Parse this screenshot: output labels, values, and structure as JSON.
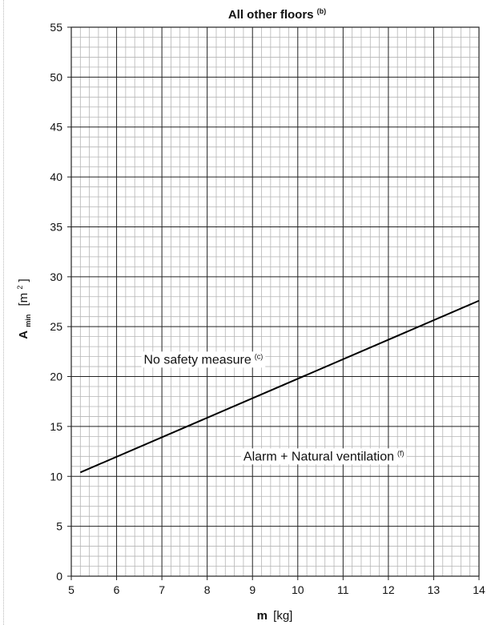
{
  "chart_data": {
    "type": "line",
    "title": "All other floors",
    "title_superscript": "(b)",
    "xlabel": "m",
    "xlabel_unit": "[kg]",
    "ylabel": "A",
    "ylabel_subscript": "min",
    "ylabel_unit": "[m",
    "ylabel_unit_superscript": "2",
    "ylabel_unit_close": "]",
    "xlim": [
      5,
      14
    ],
    "ylim": [
      0,
      55
    ],
    "x_ticks": [
      "5",
      "6",
      "7",
      "8",
      "9",
      "10",
      "11",
      "12",
      "13",
      "14"
    ],
    "y_ticks": [
      "0",
      "5",
      "10",
      "15",
      "20",
      "25",
      "30",
      "35",
      "40",
      "45",
      "50",
      "55"
    ],
    "grid": true,
    "series": [
      {
        "x": [
          5.2,
          14.0
        ],
        "y": [
          10.4,
          27.6
        ],
        "color": "#000000"
      }
    ],
    "annotations": [
      {
        "text": "No safety measure",
        "superscript": "(c)",
        "x": 6.6,
        "y": 21.3
      },
      {
        "text": "Alarm + Natural ventilation",
        "superscript": "(f)",
        "x": 8.8,
        "y": 11.6
      }
    ]
  },
  "colors": {
    "major_grid": "#222222",
    "minor_grid": "#b5b5b5",
    "line": "#000000"
  }
}
